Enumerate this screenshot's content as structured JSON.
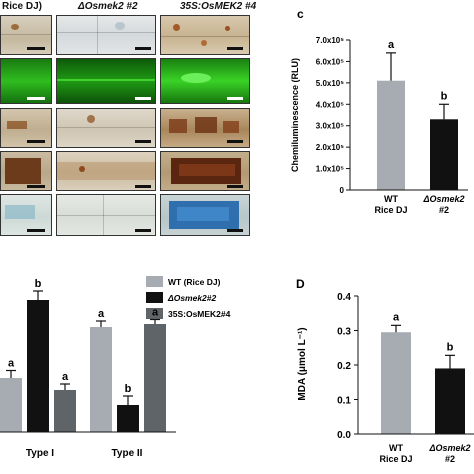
{
  "panel_a": {
    "columns": [
      {
        "title": "Rice DJ)",
        "italic": false
      },
      {
        "title": "ΔOsmek2 #2",
        "italic": true
      },
      {
        "title": "35S:OsMEK2 #4",
        "italic": true
      }
    ]
  },
  "panel_c": {
    "letter": "c",
    "ylabel": "Chemiluminescence (RLU)",
    "tick_labels": [
      "0",
      "1.0x10⁵",
      "2.0x10⁵",
      "3.0x10⁵",
      "4.0x10⁵",
      "5.0x10⁵",
      "6.0x10⁵",
      "7.0x10⁵"
    ],
    "categories": [
      [
        "WT",
        "Rice DJ"
      ],
      [
        "ΔOsmek2",
        "#2"
      ]
    ],
    "sig_letters": [
      "a",
      "b"
    ],
    "colors": [
      "#a6acb2",
      "#111111"
    ]
  },
  "panel_b": {
    "legend": [
      "WT (Rice DJ)",
      "ΔOsmek2#2",
      "35S:OsMEK2#4"
    ],
    "groups": [
      "Type I",
      "Type II"
    ],
    "sig_letters": [
      [
        "a",
        "b",
        "a"
      ],
      [
        "a",
        "b",
        "a"
      ]
    ],
    "colors": [
      "#a6acb2",
      "#111111",
      "#5e6468"
    ]
  },
  "panel_d": {
    "letter": "D",
    "ylabel": "MDA (μmol L⁻¹)",
    "tick_labels": [
      "0.0",
      "0.1",
      "0.2",
      "0.3",
      "0.4"
    ],
    "categories": [
      [
        "WT",
        "Rice DJ"
      ],
      [
        "ΔOsmek2",
        "#2"
      ]
    ],
    "sig_letters": [
      "a",
      "b"
    ],
    "colors": [
      "#a6acb2",
      "#111111"
    ]
  },
  "chart_data": [
    {
      "type": "bar",
      "panel": "c",
      "categories": [
        "WT Rice DJ",
        "ΔOsmek2 #2"
      ],
      "values": [
        510000,
        330000
      ],
      "errors": [
        130000,
        70000
      ],
      "ylabel": "Chemiluminescence (RLU)",
      "ylim": [
        0,
        700000
      ]
    },
    {
      "type": "bar",
      "panel": "b",
      "categories": [
        "Type I",
        "Type II"
      ],
      "series": [
        {
          "name": "WT (Rice DJ)",
          "values": [
            0.36,
            0.7
          ],
          "errors": [
            0.05,
            0.04
          ]
        },
        {
          "name": "ΔOsmek2#2",
          "values": [
            0.88,
            0.18
          ],
          "errors": [
            0.06,
            0.06
          ]
        },
        {
          "name": "35S:OsMEK2#4",
          "values": [
            0.28,
            0.72
          ],
          "errors": [
            0.04,
            0.03
          ]
        }
      ]
    },
    {
      "type": "bar",
      "panel": "D",
      "categories": [
        "WT Rice DJ",
        "ΔOsmek2 #2"
      ],
      "values": [
        0.295,
        0.19
      ],
      "errors": [
        0.02,
        0.038
      ],
      "ylabel": "MDA (μmol L⁻¹)",
      "ylim": [
        0,
        0.4
      ]
    }
  ]
}
